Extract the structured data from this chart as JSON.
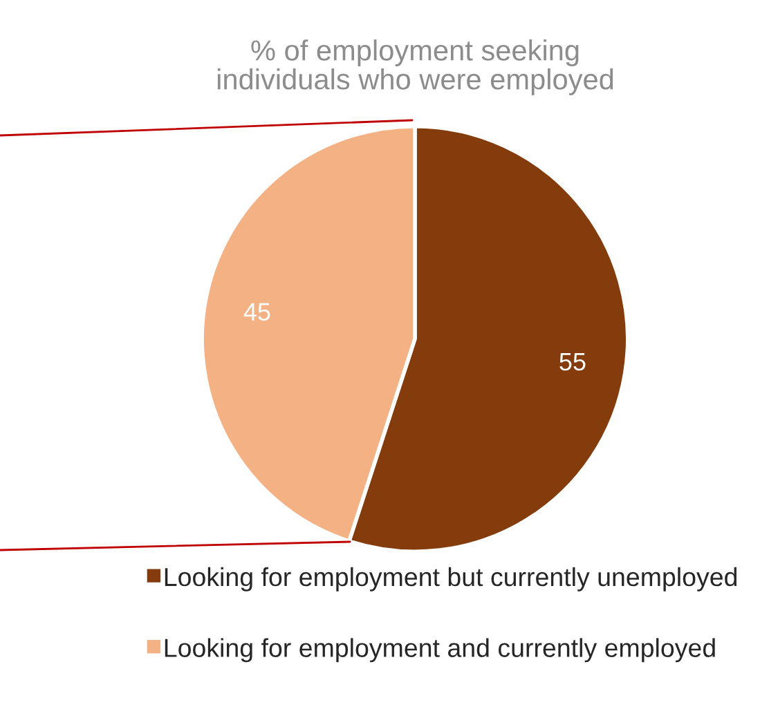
{
  "chart_data": {
    "type": "pie",
    "title": "% of employment seeking\nindividuals who were employed",
    "categories": [
      "Looking for employment but currently unemployed",
      "Looking for employment and currently employed"
    ],
    "values": [
      55,
      45
    ],
    "colors": [
      "#843c0c",
      "#f4b183"
    ],
    "data_labels": true,
    "legend": "bottom"
  }
}
